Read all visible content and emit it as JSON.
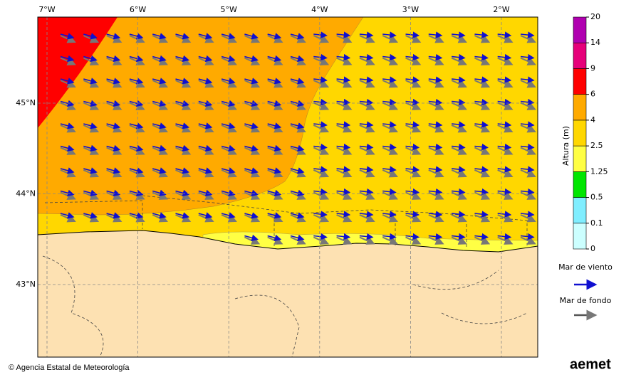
{
  "map": {
    "lon_labels": [
      "7°W",
      "6°W",
      "5°W",
      "4°W",
      "3°W",
      "2°W"
    ],
    "lat_labels": [
      "45°N",
      "44°N",
      "43°N"
    ]
  },
  "colorbar": {
    "label": "Altura (m)",
    "ticks": [
      0,
      0.1,
      0.5,
      1.25,
      2.5,
      4,
      6,
      9,
      14,
      20
    ],
    "colors": [
      "#ccffff",
      "#80eeff",
      "#00e600",
      "#ffff44",
      "#ffd700",
      "#ffaa00",
      "#ff0000",
      "#e6007a",
      "#b000b0"
    ]
  },
  "legend": {
    "wind_sea": "Mar de viento",
    "swell": "Mar de fondo"
  },
  "footer": {
    "credit": "© Agencia Estatal de Meteorología",
    "logo": "aemet"
  }
}
